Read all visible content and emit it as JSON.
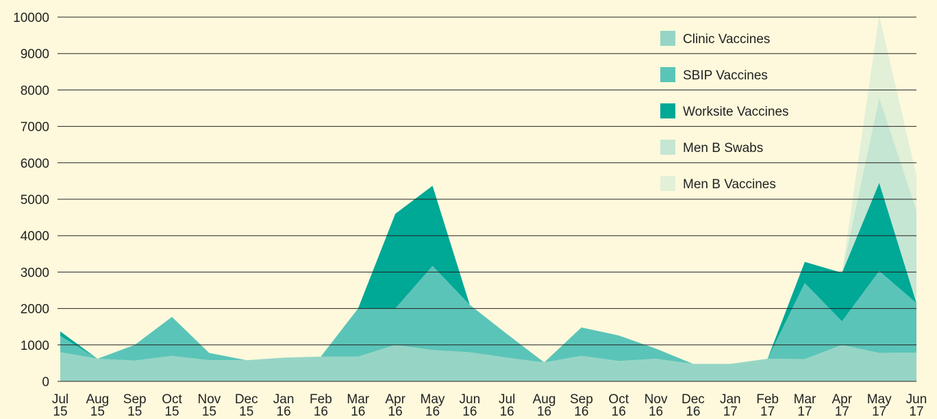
{
  "chart_data": {
    "type": "area",
    "categories": [
      "Jul 15",
      "Aug 15",
      "Sep 15",
      "Oct 15",
      "Nov 15",
      "Dec 15",
      "Jan 16",
      "Feb 16",
      "Mar 16",
      "Apr 16",
      "May 16",
      "Jun 16",
      "Jul 16",
      "Aug 16",
      "Sep 16",
      "Oct 16",
      "Nov 16",
      "Dec 16",
      "Jan 17",
      "Feb 17",
      "Mar 17",
      "Apr 17",
      "May 17",
      "Jun 17"
    ],
    "series": [
      {
        "name": "Clinic Vaccines",
        "color": "#96d5c5",
        "values": [
          800,
          620,
          570,
          700,
          580,
          580,
          650,
          680,
          680,
          1000,
          860,
          800,
          650,
          520,
          700,
          560,
          620,
          480,
          480,
          620,
          610,
          1000,
          780,
          790
        ]
      },
      {
        "name": "SBIP Vaccines",
        "color": "#5bc4b8",
        "values": [
          450,
          0,
          430,
          1070,
          200,
          0,
          0,
          0,
          1320,
          1000,
          2310,
          1300,
          650,
          0,
          780,
          700,
          280,
          0,
          0,
          0,
          2090,
          650,
          2250,
          1360
        ]
      },
      {
        "name": "Worksite Vaccines",
        "color": "#00a896",
        "values": [
          120,
          0,
          0,
          0,
          0,
          0,
          0,
          0,
          0,
          2600,
          2200,
          0,
          0,
          0,
          0,
          0,
          0,
          0,
          0,
          0,
          580,
          1330,
          2420,
          0
        ]
      },
      {
        "name": "Men B Swabs",
        "color": "#c4e6d3",
        "values": [
          0,
          0,
          0,
          0,
          0,
          0,
          0,
          0,
          0,
          0,
          0,
          0,
          0,
          0,
          0,
          0,
          0,
          0,
          0,
          0,
          0,
          0,
          2330,
          2550
        ]
      },
      {
        "name": "Men B Vaccines",
        "color": "#e2f0d8",
        "values": [
          0,
          0,
          0,
          0,
          0,
          0,
          0,
          0,
          0,
          0,
          0,
          0,
          0,
          0,
          0,
          0,
          0,
          0,
          0,
          0,
          0,
          0,
          2270,
          950
        ]
      }
    ],
    "stacked": true,
    "ylim": [
      0,
      10000
    ],
    "yticks": [
      0,
      1000,
      2000,
      3000,
      4000,
      5000,
      6000,
      7000,
      8000,
      9000,
      10000
    ],
    "grid": true,
    "legend": "top-right"
  }
}
